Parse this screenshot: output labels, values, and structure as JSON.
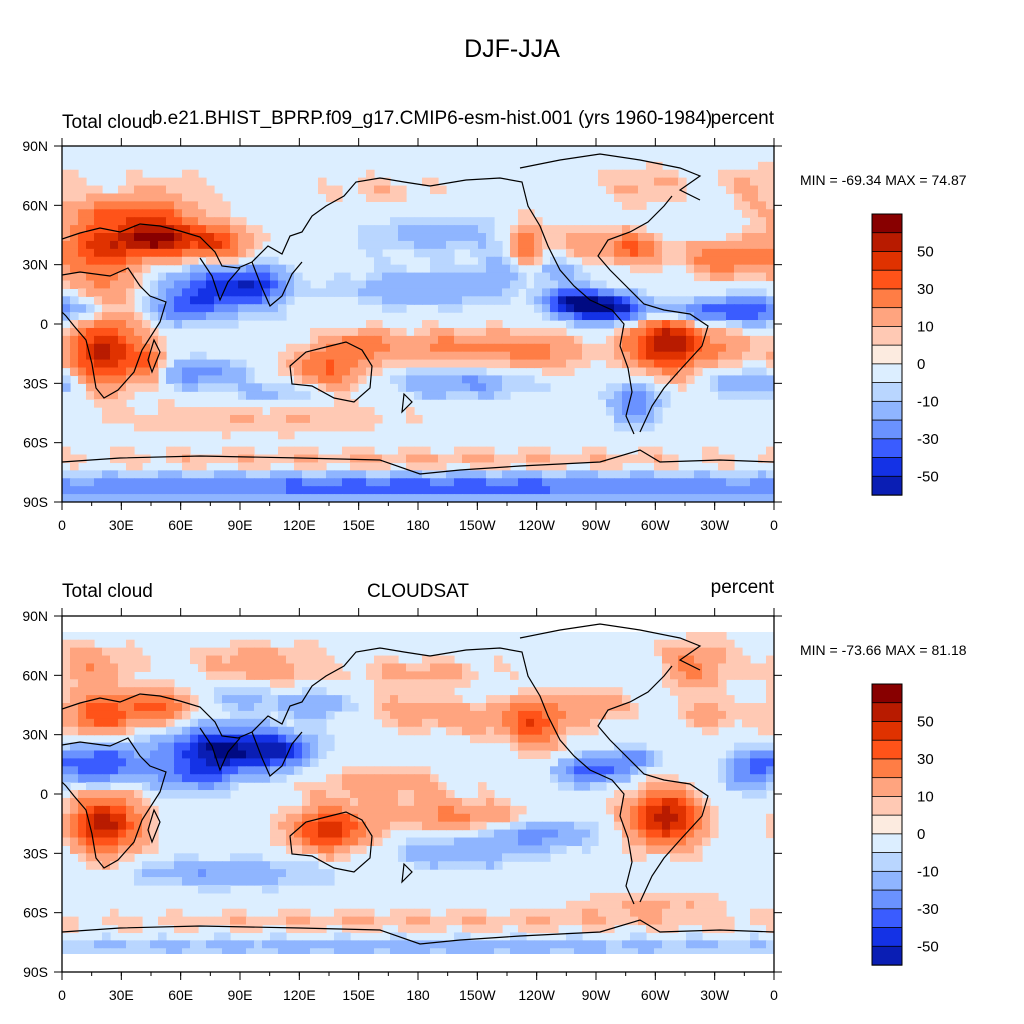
{
  "figure": {
    "title": "DJF-JJA"
  },
  "colorbar": {
    "levels": [
      -60,
      -50,
      -40,
      -30,
      -20,
      -10,
      -5,
      0,
      5,
      10,
      20,
      30,
      40,
      50,
      60
    ],
    "labels": [
      "50",
      "30",
      "10",
      "0",
      "-10",
      "-30",
      "-50"
    ],
    "colors": [
      "#fafafa",
      "#880000",
      "#b81b00",
      "#e03200",
      "#ff5319",
      "#ff7d45",
      "#ffa47f",
      "#ffc9b4",
      "#fcebe0",
      "#dceeff",
      "#b9d6ff",
      "#8fb5ff",
      "#6a92ff",
      "#3a5cff",
      "#1432e6",
      "#0a1eb4",
      "#000a82"
    ]
  },
  "chart_data": [
    {
      "type": "heatmap",
      "title": "b.e21.BHIST_BPRP.f09_g17.CMIP6-esm-hist.001 (yrs 1960-1984)",
      "left_label": "Total cloud",
      "right_label": "percent",
      "minmax": "MIN = -69.34 MAX =  74.87",
      "min": -69.34,
      "max": 74.87,
      "x_ticks": [
        "0",
        "30E",
        "60E",
        "90E",
        "120E",
        "150E",
        "180",
        "150W",
        "120W",
        "90W",
        "60W",
        "30W",
        "0"
      ],
      "y_ticks": [
        "90N",
        "60N",
        "30N",
        "0",
        "30S",
        "60S",
        "90S"
      ],
      "xlim": [
        0,
        360
      ],
      "ylim": [
        -90,
        90
      ],
      "anomalies": [
        [
          20,
          40,
          16,
          10,
          40
        ],
        [
          50,
          44,
          14,
          7,
          58
        ],
        [
          80,
          40,
          12,
          7,
          35
        ],
        [
          20,
          15,
          12,
          10,
          20
        ],
        [
          22,
          -15,
          13,
          12,
          52
        ],
        [
          44,
          -20,
          5,
          6,
          25
        ],
        [
          80,
          18,
          18,
          9,
          -42
        ],
        [
          100,
          20,
          10,
          6,
          -25
        ],
        [
          0,
          8,
          20,
          5,
          -30
        ],
        [
          60,
          8,
          10,
          5,
          -25
        ],
        [
          135,
          -22,
          14,
          8,
          30
        ],
        [
          150,
          -10,
          10,
          5,
          18
        ],
        [
          200,
          -12,
          30,
          6,
          24
        ],
        [
          245,
          -15,
          15,
          7,
          15
        ],
        [
          185,
          18,
          30,
          6,
          -20
        ],
        [
          240,
          28,
          20,
          5,
          -18
        ],
        [
          190,
          45,
          25,
          7,
          -15
        ],
        [
          235,
          38,
          6,
          10,
          30
        ],
        [
          265,
          40,
          14,
          7,
          15
        ],
        [
          290,
          38,
          10,
          6,
          28
        ],
        [
          335,
          33,
          14,
          6,
          30
        ],
        [
          305,
          -10,
          13,
          10,
          60
        ],
        [
          335,
          -12,
          10,
          6,
          18
        ],
        [
          275,
          8,
          15,
          5,
          -62
        ],
        [
          258,
          12,
          10,
          4,
          -42
        ],
        [
          325,
          6,
          18,
          4,
          -32
        ],
        [
          295,
          70,
          15,
          7,
          12
        ],
        [
          350,
          70,
          10,
          8,
          12
        ],
        [
          160,
          68,
          22,
          6,
          8
        ],
        [
          70,
          -25,
          15,
          5,
          -25
        ],
        [
          200,
          -30,
          25,
          5,
          -22
        ],
        [
          110,
          -35,
          15,
          4,
          -15
        ],
        [
          350,
          -30,
          15,
          5,
          -20
        ],
        [
          290,
          -40,
          8,
          8,
          -30
        ],
        [
          100,
          -48,
          60,
          6,
          10
        ],
        [
          180,
          -70,
          150,
          5,
          12
        ],
        [
          180,
          -82,
          180,
          5,
          -35
        ],
        [
          50,
          65,
          20,
          8,
          12
        ],
        [
          30,
          57,
          20,
          4,
          20
        ]
      ]
    },
    {
      "type": "heatmap",
      "title": "CLOUDSAT",
      "left_label": "Total cloud",
      "right_label": "percent",
      "minmax": "MIN = -73.66 MAX =  81.18",
      "min": -73.66,
      "max": 81.18,
      "x_ticks": [
        "0",
        "30E",
        "60E",
        "90E",
        "120E",
        "150E",
        "180",
        "150W",
        "120W",
        "90W",
        "60W",
        "30W",
        "0"
      ],
      "y_ticks": [
        "90N",
        "60N",
        "30N",
        "0",
        "30S",
        "60S",
        "90S"
      ],
      "xlim": [
        0,
        360
      ],
      "ylim": [
        -90,
        90
      ],
      "anomalies": [
        [
          20,
          40,
          14,
          8,
          35
        ],
        [
          50,
          44,
          12,
          6,
          30
        ],
        [
          20,
          15,
          14,
          8,
          -40
        ],
        [
          22,
          -15,
          12,
          11,
          55
        ],
        [
          80,
          22,
          20,
          8,
          -62
        ],
        [
          110,
          22,
          12,
          6,
          -35
        ],
        [
          65,
          8,
          14,
          5,
          -25
        ],
        [
          135,
          -18,
          14,
          8,
          45
        ],
        [
          160,
          5,
          25,
          6,
          15
        ],
        [
          190,
          -10,
          22,
          6,
          15
        ],
        [
          215,
          -12,
          20,
          5,
          12
        ],
        [
          240,
          35,
          10,
          10,
          30
        ],
        [
          270,
          45,
          12,
          6,
          18
        ],
        [
          215,
          38,
          25,
          6,
          15
        ],
        [
          170,
          45,
          20,
          8,
          10
        ],
        [
          305,
          -12,
          13,
          10,
          55
        ],
        [
          268,
          12,
          12,
          5,
          -38
        ],
        [
          290,
          18,
          8,
          4,
          -25
        ],
        [
          350,
          15,
          10,
          5,
          -30
        ],
        [
          320,
          65,
          12,
          10,
          22
        ],
        [
          100,
          65,
          20,
          8,
          18
        ],
        [
          130,
          45,
          15,
          5,
          -20
        ],
        [
          90,
          50,
          15,
          5,
          -15
        ],
        [
          185,
          62,
          25,
          5,
          12
        ],
        [
          15,
          65,
          14,
          8,
          18
        ],
        [
          240,
          -20,
          20,
          5,
          -25
        ],
        [
          200,
          -30,
          25,
          5,
          -18
        ],
        [
          100,
          -40,
          25,
          5,
          -15
        ],
        [
          300,
          -55,
          30,
          5,
          10
        ],
        [
          180,
          -65,
          150,
          5,
          10
        ],
        [
          180,
          -77,
          180,
          4,
          -15
        ],
        [
          60,
          -40,
          20,
          5,
          -12
        ],
        [
          330,
          40,
          10,
          5,
          15
        ],
        [
          345,
          5,
          10,
          4,
          -15
        ]
      ]
    }
  ]
}
